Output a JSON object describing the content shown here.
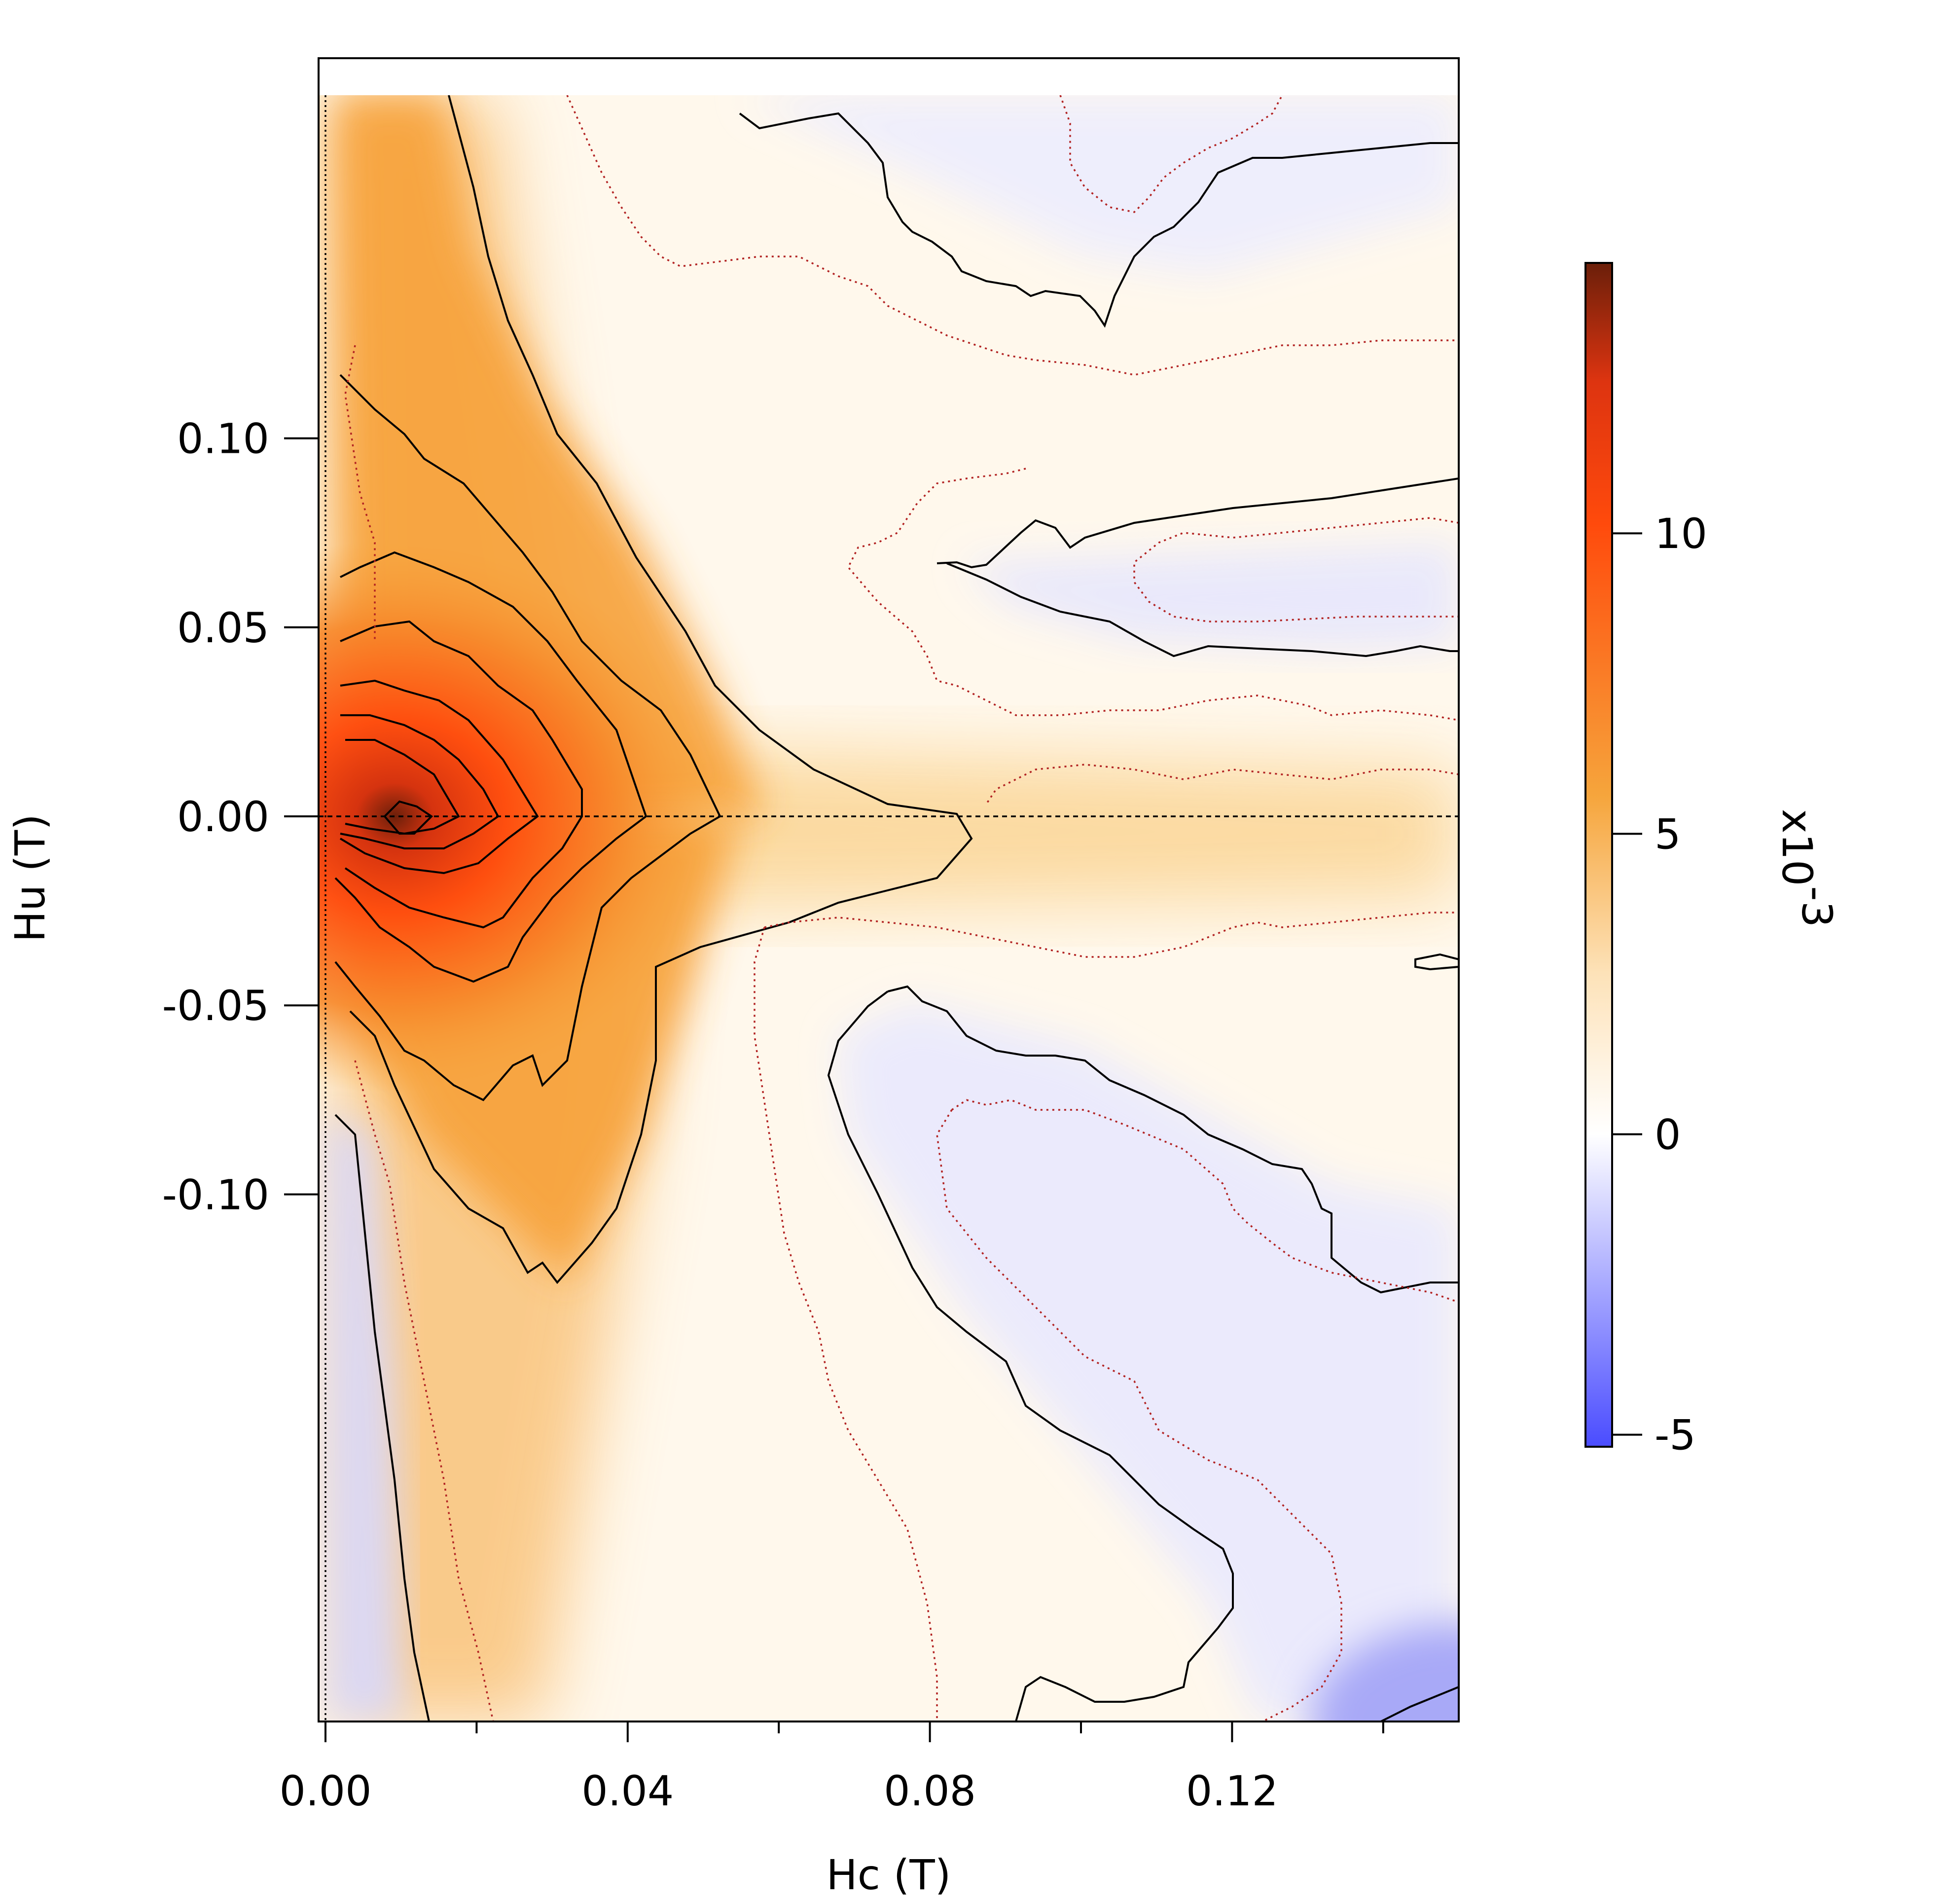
{
  "chart_data": {
    "type": "heatmap",
    "title": "",
    "xlabel": "Hc (T)",
    "ylabel": "Hu (T)",
    "xlim": [
      0.0,
      0.15
    ],
    "ylim": [
      -0.12,
      0.1
    ],
    "x_ticks": [
      {
        "value": 0.0,
        "label": "0.00"
      },
      {
        "value": 0.04,
        "label": "0.04"
      },
      {
        "value": 0.08,
        "label": "0.08"
      },
      {
        "value": 0.12,
        "label": "0.12"
      }
    ],
    "x_minor_ticks": [
      0.02,
      0.06,
      0.1,
      0.14
    ],
    "y_ticks": [
      {
        "value": 0.1,
        "label": "0.10"
      },
      {
        "value": 0.05,
        "label": "0.05"
      },
      {
        "value": 0.0,
        "label": "0.00"
      },
      {
        "value": -0.05,
        "label": "-0.05"
      },
      {
        "value": -0.1,
        "label": "-0.10"
      }
    ],
    "colorbar": {
      "label": "x10",
      "exponent": "-3",
      "range": [
        -5.2,
        14.5
      ],
      "ticks": [
        {
          "value": 10,
          "label": "10"
        },
        {
          "value": 5,
          "label": "5"
        },
        {
          "value": 0,
          "label": "0"
        },
        {
          "value": -5,
          "label": "-5"
        }
      ],
      "colors": {
        "min": "#4a4cff",
        "zero": "#ffffff",
        "low_positive": "#f7a23a",
        "high_positive": "#ff4a0c",
        "max": "#6b1f0a"
      }
    },
    "peak": {
      "x": 0.011,
      "y": 0.0,
      "value": 14.0
    },
    "reference_lines": [
      {
        "orientation": "horizontal",
        "value": 0.0,
        "style": "dashed"
      },
      {
        "orientation": "vertical",
        "value": 0.0,
        "style": "dotted"
      }
    ],
    "contours": {
      "solid_color": "#000000",
      "dotted_color": "#b22222",
      "levels_solid": [
        0,
        1,
        2,
        3,
        4,
        5,
        6,
        7,
        8,
        10,
        12
      ],
      "levels_dotted": [
        0.5
      ]
    }
  }
}
